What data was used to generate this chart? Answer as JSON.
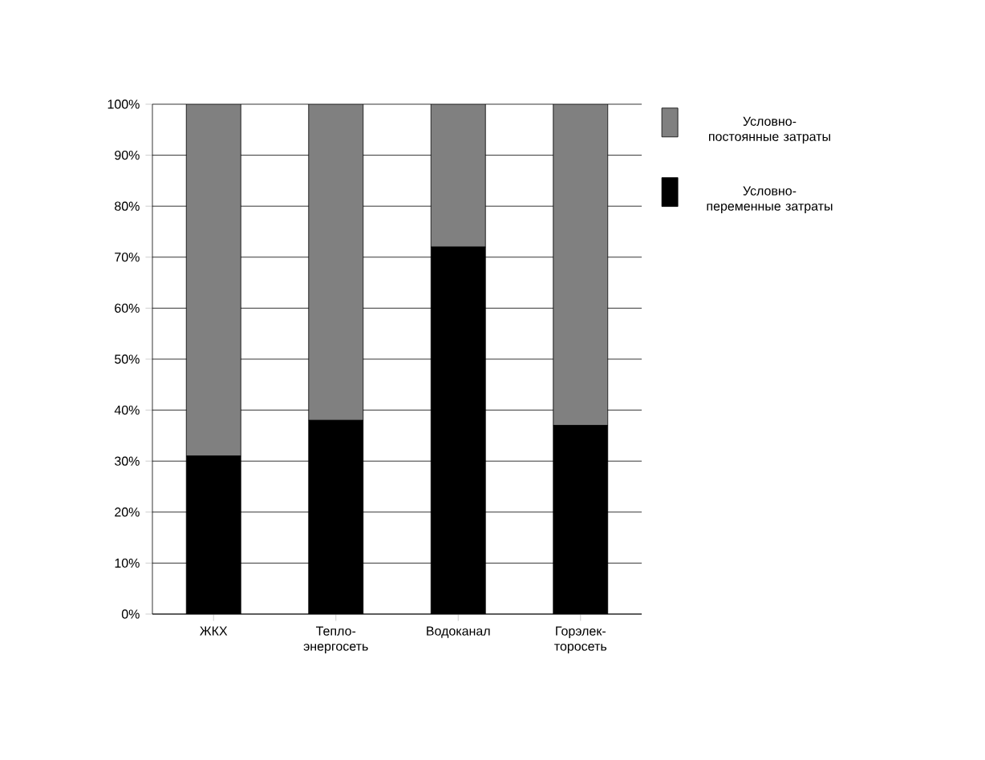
{
  "chart_data": {
    "type": "bar",
    "stacked": true,
    "categories": [
      "ЖКХ",
      "Тепло-энергосеть",
      "Водоканал",
      "Горэлек-торосеть"
    ],
    "series": [
      {
        "name": "Условно-переменные затраты",
        "color": "#000000",
        "values": [
          31,
          38,
          72,
          37
        ]
      },
      {
        "name": "Условно-постоянные затраты",
        "color": "#808080",
        "values": [
          69,
          62,
          28,
          63
        ]
      }
    ],
    "ylim": [
      0,
      100
    ],
    "yticks": [
      {
        "value": 0,
        "label": "0%"
      },
      {
        "value": 10,
        "label": "10%"
      },
      {
        "value": 20,
        "label": "20%"
      },
      {
        "value": 30,
        "label": "30%"
      },
      {
        "value": 40,
        "label": "40%"
      },
      {
        "value": 50,
        "label": "50%"
      },
      {
        "value": 60,
        "label": "60%"
      },
      {
        "value": 70,
        "label": "70%"
      },
      {
        "value": 80,
        "label": "80%"
      },
      {
        "value": 90,
        "label": "90%"
      },
      {
        "value": 100,
        "label": "100%"
      }
    ],
    "grid": "y",
    "legend": "right"
  }
}
